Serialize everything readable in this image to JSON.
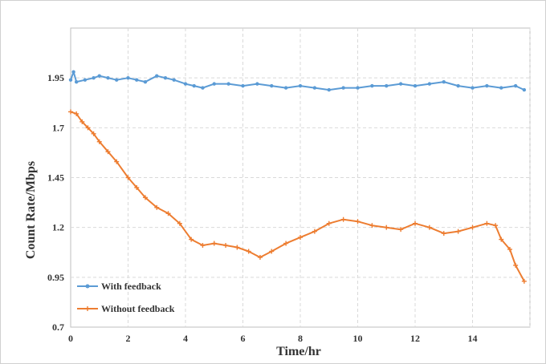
{
  "chart_data": {
    "type": "line",
    "title": "",
    "xlabel": "Time/hr",
    "ylabel": "Count Rate/Mbps",
    "xlim": [
      0,
      16
    ],
    "ylim": [
      0.7,
      2.2
    ],
    "x_ticks": [
      0,
      2,
      4,
      6,
      8,
      10,
      12,
      14
    ],
    "y_ticks": [
      0.7,
      0.95,
      1.2,
      1.45,
      1.7,
      1.95
    ],
    "x_tick_labels": [
      "0",
      "2",
      "4",
      "6",
      "8",
      "10",
      "12",
      "14"
    ],
    "y_tick_labels": [
      "0.7",
      "0.95",
      "1.2",
      "1.45",
      "1.7",
      "1.95"
    ],
    "grid": true,
    "legend_position": "bottom-left",
    "colors": {
      "with_feedback": "#5b9bd5",
      "without_feedback": "#ed7d31",
      "grid": "#d9d9d9",
      "frame": "#bfbfbf"
    },
    "series": [
      {
        "name": "With feedback",
        "marker": "dot",
        "x": [
          0,
          0.1,
          0.2,
          0.5,
          0.8,
          1.0,
          1.3,
          1.6,
          2.0,
          2.3,
          2.6,
          3.0,
          3.3,
          3.6,
          4.0,
          4.3,
          4.6,
          5.0,
          5.5,
          6.0,
          6.5,
          7.0,
          7.5,
          8.0,
          8.5,
          9.0,
          9.5,
          10.0,
          10.5,
          11.0,
          11.5,
          12.0,
          12.5,
          13.0,
          13.5,
          14.0,
          14.5,
          15.0,
          15.5,
          15.8
        ],
        "y": [
          1.94,
          1.98,
          1.93,
          1.94,
          1.95,
          1.96,
          1.95,
          1.94,
          1.95,
          1.94,
          1.93,
          1.96,
          1.95,
          1.94,
          1.92,
          1.91,
          1.9,
          1.92,
          1.92,
          1.91,
          1.92,
          1.91,
          1.9,
          1.91,
          1.9,
          1.89,
          1.9,
          1.9,
          1.91,
          1.91,
          1.92,
          1.91,
          1.92,
          1.93,
          1.91,
          1.9,
          1.91,
          1.9,
          1.91,
          1.89
        ]
      },
      {
        "name": "Without feedback",
        "marker": "star",
        "x": [
          0,
          0.2,
          0.4,
          0.6,
          0.8,
          1.0,
          1.3,
          1.6,
          2.0,
          2.3,
          2.6,
          3.0,
          3.4,
          3.8,
          4.2,
          4.6,
          5.0,
          5.4,
          5.8,
          6.2,
          6.6,
          7.0,
          7.5,
          8.0,
          8.5,
          9.0,
          9.5,
          10.0,
          10.5,
          11.0,
          11.5,
          12.0,
          12.5,
          13.0,
          13.5,
          14.0,
          14.5,
          14.8,
          15.0,
          15.3,
          15.5,
          15.8
        ],
        "y": [
          1.78,
          1.77,
          1.73,
          1.7,
          1.67,
          1.63,
          1.58,
          1.53,
          1.45,
          1.4,
          1.35,
          1.3,
          1.27,
          1.22,
          1.14,
          1.11,
          1.12,
          1.11,
          1.1,
          1.08,
          1.05,
          1.08,
          1.12,
          1.15,
          1.18,
          1.22,
          1.24,
          1.23,
          1.21,
          1.2,
          1.19,
          1.22,
          1.2,
          1.17,
          1.18,
          1.2,
          1.22,
          1.21,
          1.14,
          1.09,
          1.01,
          0.93
        ]
      }
    ]
  }
}
